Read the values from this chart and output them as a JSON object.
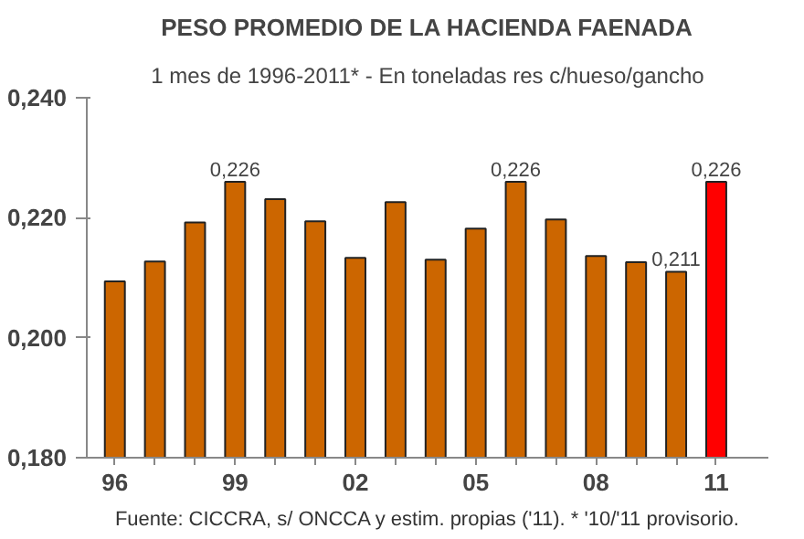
{
  "chart_data": {
    "type": "bar",
    "title": "PESO PROMEDIO DE LA HACIENDA FAENADA",
    "subtitle": "1 mes de 1996-2011* - En toneladas res c/hueso/gancho",
    "categories": [
      "96",
      null,
      null,
      "99",
      null,
      null,
      "02",
      null,
      null,
      "05",
      null,
      null,
      "08",
      null,
      null,
      "11"
    ],
    "values": [
      0.2094,
      0.2127,
      0.2192,
      0.226,
      0.2231,
      0.2194,
      0.2133,
      0.2226,
      0.213,
      0.2182,
      0.226,
      0.2197,
      0.2136,
      0.2126,
      0.211,
      0.226
    ],
    "colors": [
      "#cc6600",
      "#cc6600",
      "#cc6600",
      "#cc6600",
      "#cc6600",
      "#cc6600",
      "#cc6600",
      "#cc6600",
      "#cc6600",
      "#cc6600",
      "#cc6600",
      "#cc6600",
      "#cc6600",
      "#cc6600",
      "#cc6600",
      "#ff0000"
    ],
    "value_labels": [
      null,
      null,
      null,
      "0,226",
      null,
      null,
      null,
      null,
      null,
      null,
      "0,226",
      null,
      null,
      null,
      "0,211",
      "0,226"
    ],
    "ylim": [
      0.18,
      0.24
    ],
    "yticks": [
      {
        "value": 0.18,
        "label": "0,180"
      },
      {
        "value": 0.2,
        "label": "0,200"
      },
      {
        "value": 0.22,
        "label": "0,220"
      },
      {
        "value": 0.24,
        "label": "0,240"
      }
    ],
    "grid": false,
    "annotations": [
      "Fuente: CICCRA, s/ ONCCA y estim. propias ('11). * '10/'11 provisorio."
    ]
  }
}
